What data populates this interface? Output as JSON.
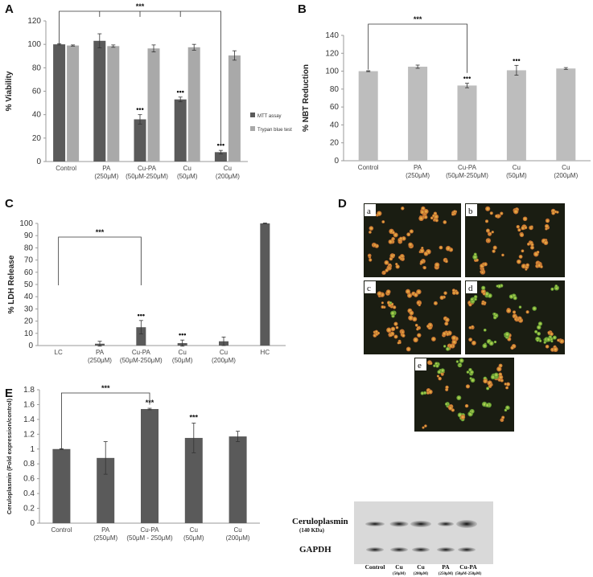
{
  "colors": {
    "dark_bar": "#5a5a5a",
    "light_bar": "#a9a9a9",
    "bar_gray": "#bdbdbd",
    "axis": "#9a9a9a",
    "blot_bg": "#d9d9d9",
    "micro_bg": "#1a1d12"
  },
  "panels": {
    "a": {
      "letter": "A"
    },
    "b": {
      "letter": "B"
    },
    "c": {
      "letter": "C"
    },
    "d": {
      "letter": "D",
      "images": [
        "a",
        "b",
        "c",
        "d",
        "e"
      ]
    },
    "e": {
      "letter": "E"
    }
  },
  "blot": {
    "protein": "Ceruloplasmin",
    "size": "(140 KDa)",
    "loading": "GAPDH",
    "lanes": [
      {
        "name": "Control",
        "sub": ""
      },
      {
        "name": "Cu",
        "sub": "(50μM)"
      },
      {
        "name": "Cu",
        "sub": "(200μM)"
      },
      {
        "name": "PA",
        "sub": "(250μM)"
      },
      {
        "name": "Cu-PA",
        "sub": "(50μM-250μM)"
      }
    ]
  },
  "chart_data": [
    {
      "id": "A",
      "type": "bar",
      "ylabel": "% Viability",
      "ylim": [
        0,
        120
      ],
      "yticks": [
        0,
        20,
        40,
        60,
        80,
        100,
        120
      ],
      "categories": [
        {
          "name": "Control",
          "sub": ""
        },
        {
          "name": "PA",
          "sub": "(250μM)"
        },
        {
          "name": "Cu-PA",
          "sub": "(50μM-250μM)"
        },
        {
          "name": "Cu",
          "sub": "(50μM)"
        },
        {
          "name": "Cu",
          "sub": "(200μM)"
        }
      ],
      "series": [
        {
          "name": "MTT assay",
          "color": "#5a5a5a",
          "values": [
            100,
            103,
            36,
            53,
            8
          ],
          "errors": [
            0.5,
            6,
            4,
            2,
            1.5
          ],
          "sig": [
            "",
            "",
            "•••",
            "•••",
            "•••"
          ]
        },
        {
          "name": "Trypan blue test",
          "color": "#a9a9a9",
          "values": [
            99,
            98.5,
            96.5,
            97.5,
            90.5
          ],
          "errors": [
            0.5,
            1,
            3,
            2.5,
            4
          ],
          "sig": [
            "",
            "",
            "",
            "",
            ""
          ]
        }
      ],
      "bracket": {
        "label": "***",
        "from": 0,
        "to": 4
      },
      "legend": "right"
    },
    {
      "id": "B",
      "type": "bar",
      "ylabel": "% NBT Reduction",
      "ylim": [
        0,
        140
      ],
      "yticks": [
        0,
        20,
        40,
        60,
        80,
        100,
        120,
        140
      ],
      "categories": [
        {
          "name": "Control",
          "sub": ""
        },
        {
          "name": "PA",
          "sub": "(250μM)"
        },
        {
          "name": "Cu-PA",
          "sub": "(50μM-250μM)"
        },
        {
          "name": "Cu",
          "sub": "(50μM)"
        },
        {
          "name": "Cu",
          "sub": "(200μM)"
        }
      ],
      "series": [
        {
          "values": [
            100,
            105,
            84,
            101,
            103
          ],
          "errors": [
            0.5,
            1.8,
            2.5,
            5.5,
            1
          ],
          "sig": [
            "",
            "",
            "•••",
            "•••",
            ""
          ]
        }
      ],
      "bracket": {
        "label": "***",
        "from": 0,
        "to": 2
      }
    },
    {
      "id": "C",
      "type": "bar",
      "ylabel": "% LDH Release",
      "ylim": [
        0,
        100
      ],
      "yticks": [
        0,
        10,
        20,
        30,
        40,
        50,
        60,
        70,
        80,
        90,
        100
      ],
      "categories": [
        {
          "name": "LC",
          "sub": ""
        },
        {
          "name": "PA",
          "sub": "(250μM)"
        },
        {
          "name": "Cu-PA",
          "sub": "(50μM-250μM)"
        },
        {
          "name": "Cu",
          "sub": "(50μM)"
        },
        {
          "name": "Cu",
          "sub": "(200μM)"
        },
        {
          "name": "HC",
          "sub": ""
        }
      ],
      "series": [
        {
          "values": [
            0,
            1.5,
            15,
            2,
            3.5,
            100
          ],
          "errors": [
            0,
            2,
            5.5,
            2.5,
            3.5,
            0.3
          ],
          "sig": [
            "",
            "",
            "•••",
            "•••",
            "",
            ""
          ]
        }
      ],
      "bracket": {
        "label": "***",
        "from": 0,
        "to": 2
      }
    },
    {
      "id": "E",
      "type": "bar",
      "ylabel": "Ceruloplasmin (Fold expression/control)",
      "ylim": [
        0,
        1.8
      ],
      "yticks": [
        0,
        0.2,
        0.4,
        0.6,
        0.8,
        1,
        1.2,
        1.4,
        1.6,
        1.8
      ],
      "categories": [
        {
          "name": "Control",
          "sub": ""
        },
        {
          "name": "PA",
          "sub": "(250μM)"
        },
        {
          "name": "Cu-PA",
          "sub": "(50μM - 250μM)"
        },
        {
          "name": "Cu",
          "sub": "(50μM)"
        },
        {
          "name": "Cu",
          "sub": "(200μM)"
        }
      ],
      "series": [
        {
          "values": [
            1.0,
            0.88,
            1.54,
            1.15,
            1.17
          ],
          "errors": [
            0.005,
            0.22,
            0.01,
            0.2,
            0.07
          ],
          "sig": [
            "",
            "",
            "***",
            "***",
            ""
          ]
        }
      ],
      "bracket": {
        "label": "***",
        "from": 0,
        "to": 2
      }
    }
  ]
}
